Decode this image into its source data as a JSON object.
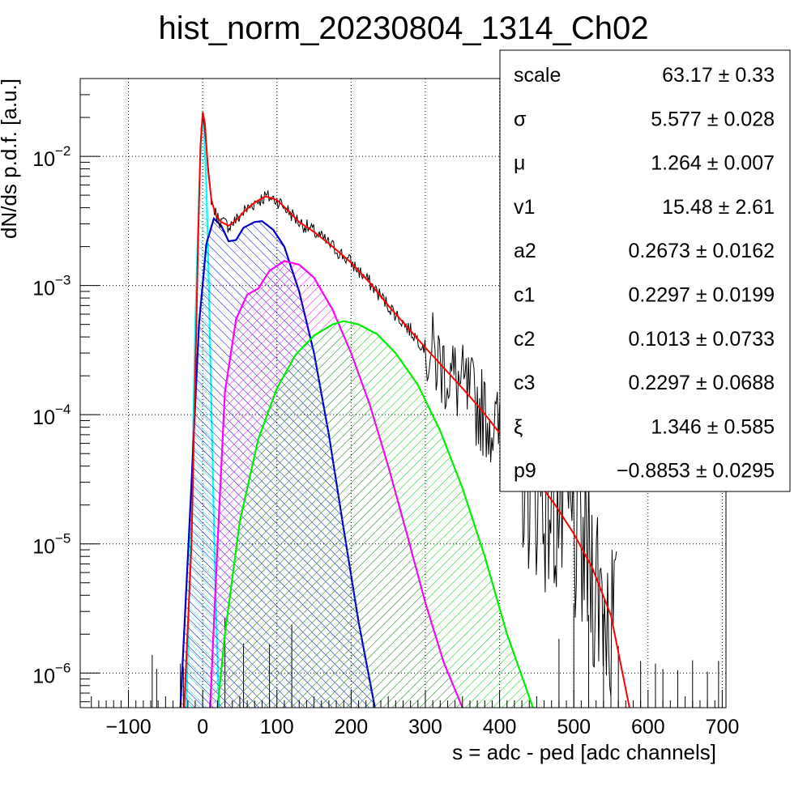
{
  "chart_data": {
    "type": "histogram",
    "title": "hist_norm_20230804_1314_Ch02",
    "xlabel": "s = adc - ped [adc channels]",
    "ylabel": "dN/ds p.d.f. [a.u.]",
    "xlim": [
      -165,
      705
    ],
    "ylim": [
      5.4e-07,
      0.04
    ],
    "y_scale": "log",
    "grid": true,
    "x_ticks": [
      {
        "value": -100,
        "label": "−100"
      },
      {
        "value": 0,
        "label": "0"
      },
      {
        "value": 100,
        "label": "100"
      },
      {
        "value": 200,
        "label": "200"
      },
      {
        "value": 300,
        "label": "300"
      },
      {
        "value": 400,
        "label": "400"
      },
      {
        "value": 500,
        "label": "500"
      },
      {
        "value": 600,
        "label": "600"
      },
      {
        "value": 700,
        "label": "700"
      }
    ],
    "y_ticks": [
      {
        "value": 0.01,
        "mant": "10",
        "exp": "−2"
      },
      {
        "value": 0.001,
        "mant": "10",
        "exp": "−3"
      },
      {
        "value": 0.0001,
        "mant": "10",
        "exp": "−4"
      },
      {
        "value": 1e-05,
        "mant": "10",
        "exp": "−5"
      },
      {
        "value": 1e-06,
        "mant": "10",
        "exp": "−6"
      }
    ],
    "series": [
      {
        "color": "#ff0000",
        "style": "line",
        "points": [
          [
            -25,
            5.4e-07
          ],
          [
            -15,
            1e-05
          ],
          [
            -10,
            0.0002
          ],
          [
            -6,
            0.0025
          ],
          [
            -3,
            0.012
          ],
          [
            0,
            0.022
          ],
          [
            3,
            0.018
          ],
          [
            7,
            0.008
          ],
          [
            12,
            0.0045
          ],
          [
            18,
            0.0035
          ],
          [
            25,
            0.0031
          ],
          [
            35,
            0.0029
          ],
          [
            45,
            0.0032
          ],
          [
            55,
            0.0037
          ],
          [
            70,
            0.0044
          ],
          [
            85,
            0.0049
          ],
          [
            100,
            0.0046
          ],
          [
            115,
            0.0038
          ],
          [
            130,
            0.0031
          ],
          [
            150,
            0.0026
          ],
          [
            175,
            0.002
          ],
          [
            200,
            0.0015
          ],
          [
            225,
            0.00105
          ],
          [
            250,
            0.0007
          ],
          [
            275,
            0.00048
          ],
          [
            300,
            0.00033
          ],
          [
            325,
            0.00023
          ],
          [
            350,
            0.00016
          ],
          [
            375,
            0.00011
          ],
          [
            400,
            7.2e-05
          ],
          [
            425,
            4.8e-05
          ],
          [
            450,
            3.1e-05
          ],
          [
            475,
            2e-05
          ],
          [
            500,
            1.2e-05
          ],
          [
            525,
            6.5e-06
          ],
          [
            550,
            2.8e-06
          ],
          [
            575,
            5.4e-07
          ]
        ]
      },
      {
        "color": "#00ffff",
        "style": "filled",
        "points": [
          [
            -22,
            5.4e-07
          ],
          [
            -15,
            2e-05
          ],
          [
            -10,
            0.0005
          ],
          [
            -5,
            0.005
          ],
          [
            -2,
            0.014
          ],
          [
            0,
            0.02
          ],
          [
            2,
            0.015
          ],
          [
            5,
            0.006
          ],
          [
            8,
            0.0012
          ],
          [
            12,
            0.0001
          ],
          [
            17,
            5e-06
          ],
          [
            22,
            5.4e-07
          ]
        ]
      },
      {
        "color": "#0000cc",
        "style": "filled",
        "points": [
          [
            -30,
            5.4e-07
          ],
          [
            -15,
            3e-05
          ],
          [
            -5,
            0.0005
          ],
          [
            5,
            0.0021
          ],
          [
            15,
            0.0033
          ],
          [
            25,
            0.0029
          ],
          [
            35,
            0.0022
          ],
          [
            45,
            0.00225
          ],
          [
            55,
            0.0028
          ],
          [
            70,
            0.0031
          ],
          [
            80,
            0.00315
          ],
          [
            95,
            0.0027
          ],
          [
            110,
            0.002
          ],
          [
            130,
            0.0009
          ],
          [
            150,
            0.0003
          ],
          [
            170,
            7e-05
          ],
          [
            190,
            1.3e-05
          ],
          [
            210,
            2.5e-06
          ],
          [
            232,
            5.4e-07
          ]
        ]
      },
      {
        "color": "#ff00ff",
        "style": "filled",
        "points": [
          [
            10,
            5.4e-07
          ],
          [
            20,
            1e-05
          ],
          [
            30,
            0.00015
          ],
          [
            45,
            0.00055
          ],
          [
            60,
            0.00085
          ],
          [
            75,
            0.00095
          ],
          [
            90,
            0.0013
          ],
          [
            110,
            0.00155
          ],
          [
            130,
            0.00145
          ],
          [
            150,
            0.00115
          ],
          [
            175,
            0.00065
          ],
          [
            200,
            0.0003
          ],
          [
            225,
            0.00012
          ],
          [
            250,
            4e-05
          ],
          [
            275,
            1.2e-05
          ],
          [
            300,
            3.5e-06
          ],
          [
            325,
            1.2e-06
          ],
          [
            350,
            5.4e-07
          ]
        ]
      },
      {
        "color": "#00ee00",
        "style": "filled",
        "points": [
          [
            20,
            5.4e-07
          ],
          [
            30,
            2e-06
          ],
          [
            50,
            1.5e-05
          ],
          [
            75,
            6.5e-05
          ],
          [
            100,
            0.00016
          ],
          [
            125,
            0.00029
          ],
          [
            150,
            0.00041
          ],
          [
            175,
            0.0005
          ],
          [
            190,
            0.00053
          ],
          [
            210,
            0.0005
          ],
          [
            235,
            0.00042
          ],
          [
            260,
            0.0003
          ],
          [
            290,
            0.00017
          ],
          [
            320,
            7.5e-05
          ],
          [
            350,
            2.7e-05
          ],
          [
            380,
            8e-06
          ],
          [
            410,
            2e-06
          ],
          [
            445,
            5.4e-07
          ]
        ]
      }
    ]
  },
  "stats": {
    "rows": [
      {
        "name": "scale",
        "value": "63.17 ± 0.33"
      },
      {
        "name": "σ",
        "value": "5.577 ± 0.028"
      },
      {
        "name": "μ",
        "value": "1.264 ± 0.007"
      },
      {
        "name": "v1",
        "value": "15.48 ± 2.61"
      },
      {
        "name": "a2",
        "value": "0.2673 ± 0.0162"
      },
      {
        "name": "c1",
        "value": "0.2297 ± 0.0199"
      },
      {
        "name": "c2",
        "value": "0.1013 ± 0.0733"
      },
      {
        "name": "c3",
        "value": "0.2297 ± 0.0688"
      },
      {
        "name": "ξ",
        "value": "1.346 ± 0.585"
      },
      {
        "name": "p9",
        "value": "−0.8853 ± 0.0295"
      }
    ]
  }
}
